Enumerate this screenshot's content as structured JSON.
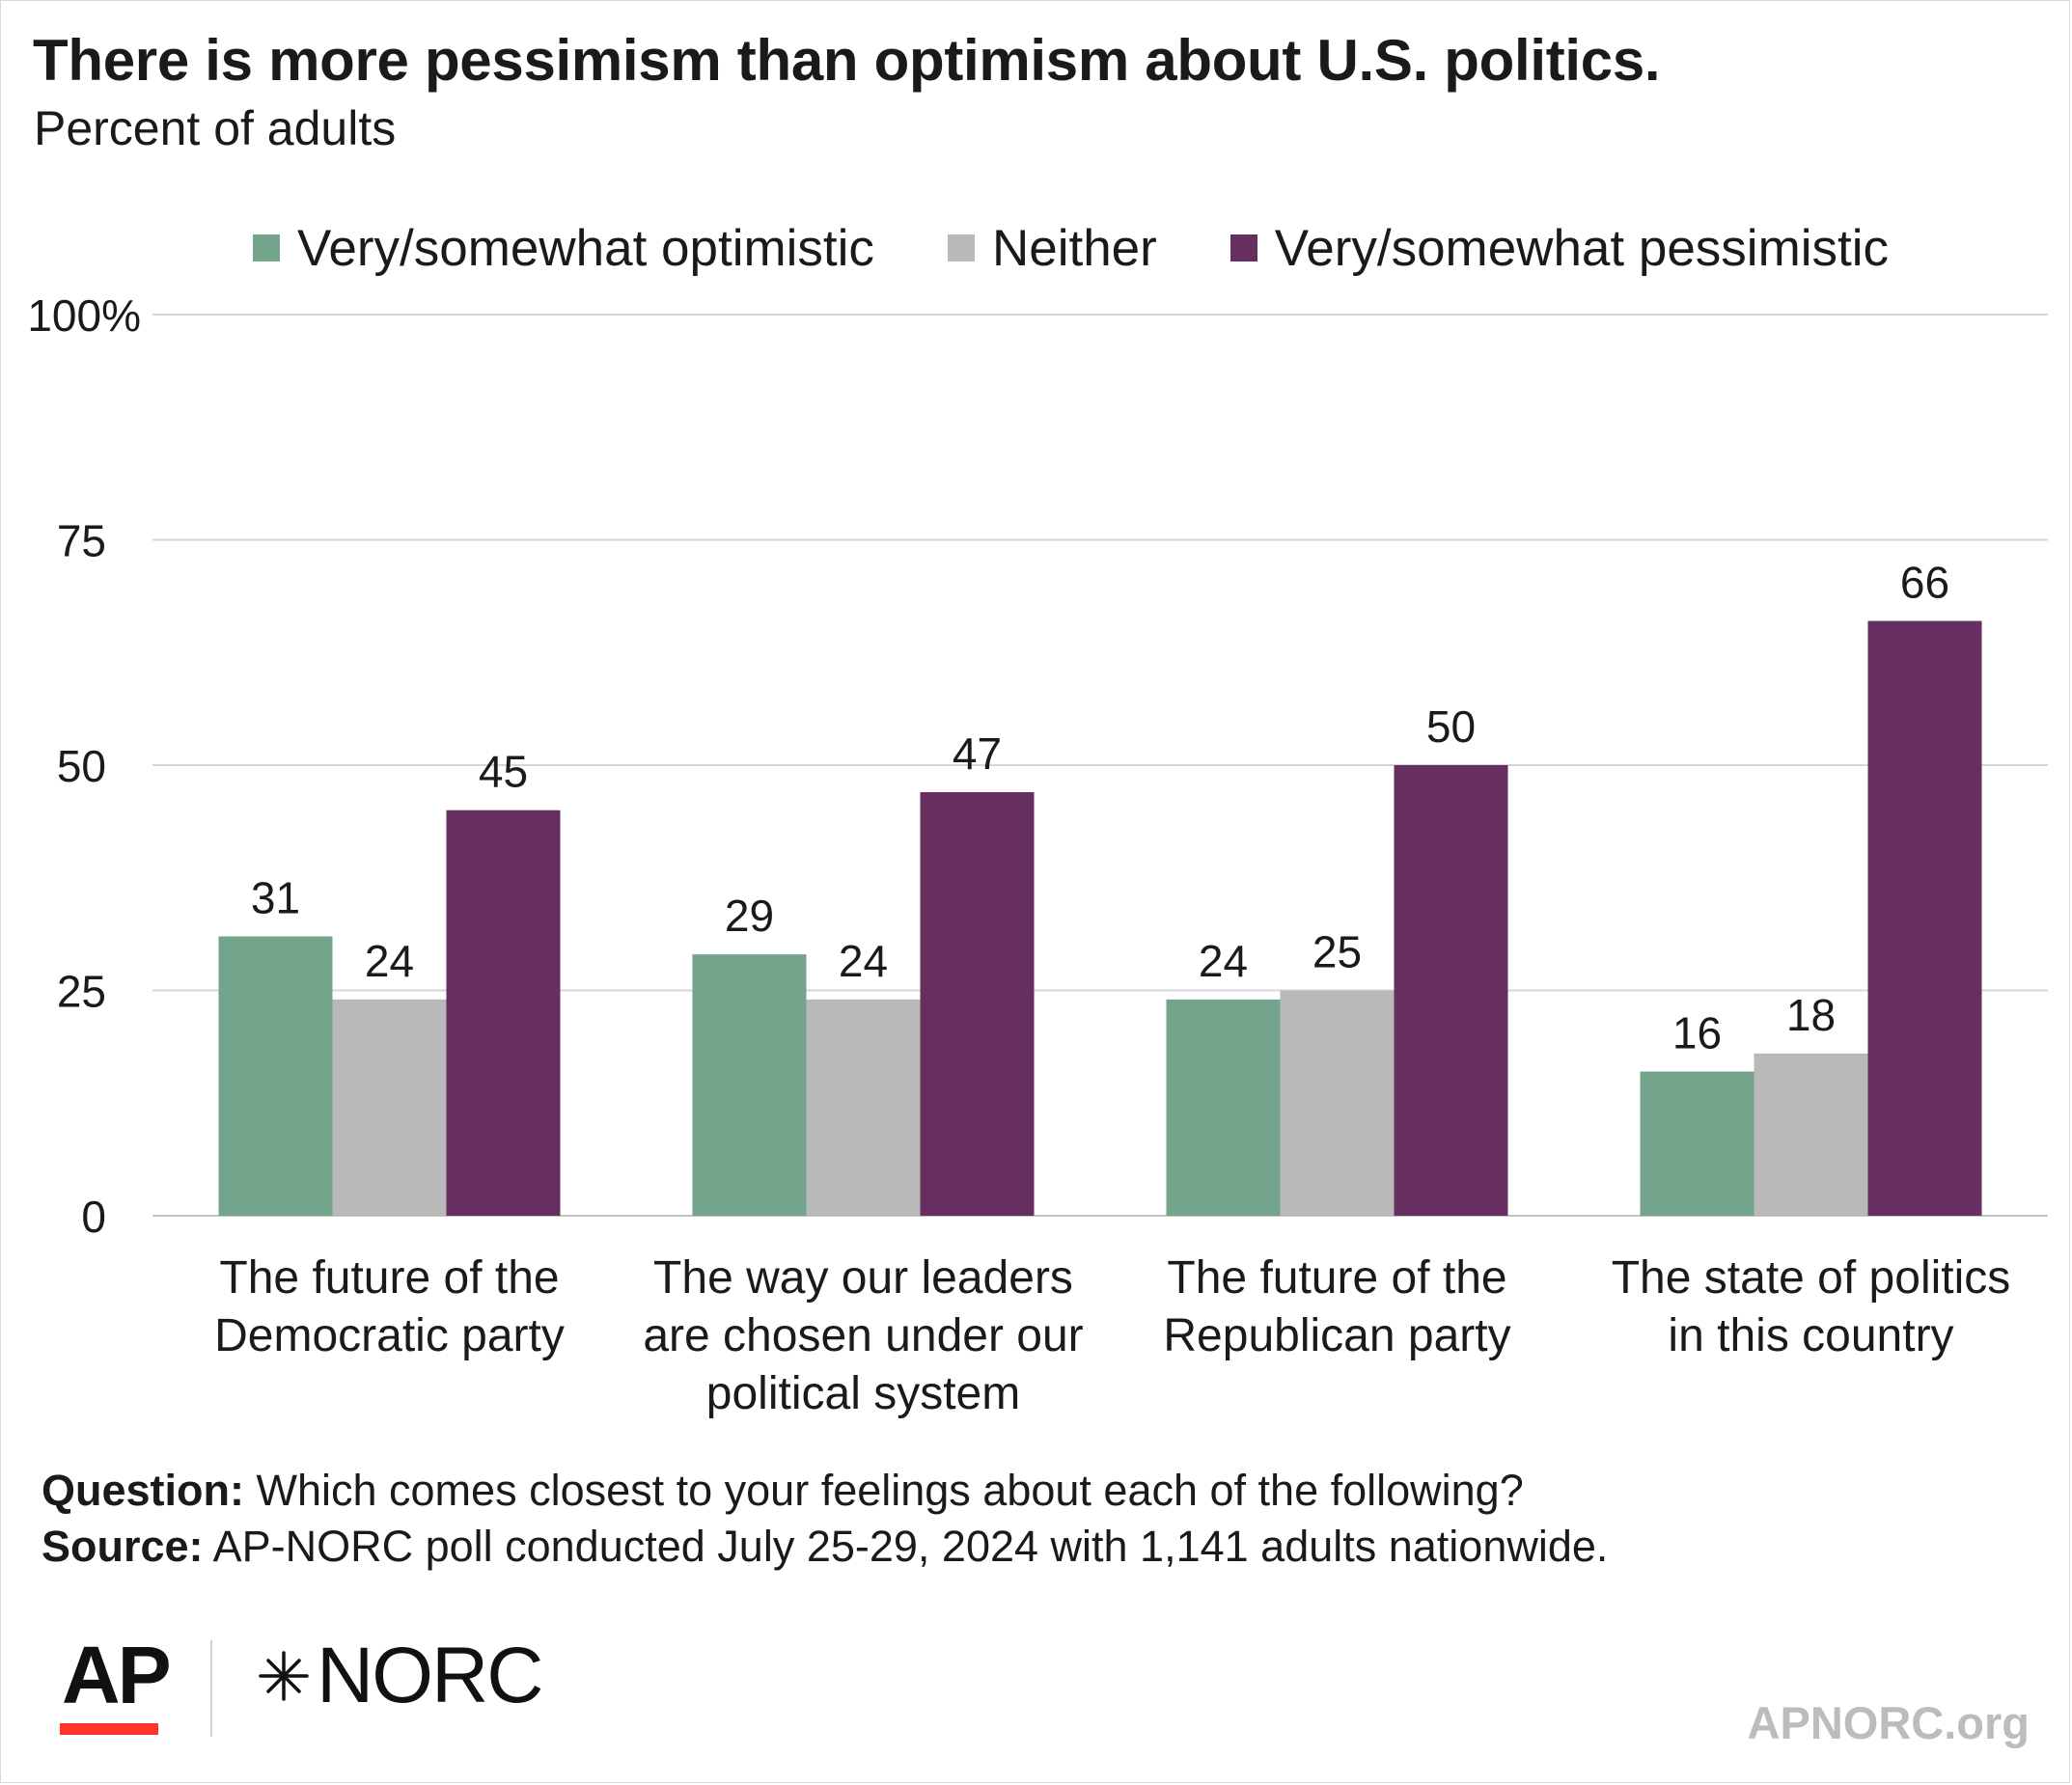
{
  "title": "There is more pessimism than optimism about U.S. politics.",
  "subtitle": "Percent of adults",
  "legend": [
    {
      "label": "Very/somewhat optimistic",
      "color": "#73a58c"
    },
    {
      "label": "Neither",
      "color": "#b9b9b9"
    },
    {
      "label": "Very/somewhat pessimistic",
      "color": "#662f60"
    }
  ],
  "chart_data": {
    "type": "bar",
    "categories": [
      [
        "The future of the",
        "Democratic party"
      ],
      [
        "The way our leaders",
        "are chosen under our",
        "political system"
      ],
      [
        "The future of the",
        "Republican party"
      ],
      [
        "The state of politics",
        "in this country"
      ]
    ],
    "series": [
      {
        "name": "Very/somewhat optimistic",
        "values": [
          31,
          29,
          24,
          16
        ],
        "color": "#73a58c"
      },
      {
        "name": "Neither",
        "values": [
          24,
          24,
          25,
          18
        ],
        "color": "#b9b9b9"
      },
      {
        "name": "Very/somewhat pessimistic",
        "values": [
          45,
          47,
          50,
          66
        ],
        "color": "#662f60"
      }
    ],
    "ylim": [
      0,
      100
    ],
    "yticks": [
      0,
      25,
      50,
      75,
      100
    ],
    "ytick_labels": [
      "0",
      "25",
      "50",
      "75",
      "100%"
    ],
    "xlabel": "",
    "ylabel": "",
    "grid": true,
    "legend_position": "top"
  },
  "footnotes": {
    "question_label": "Question:",
    "question_text": " Which comes closest to your feelings about each of the following?",
    "source_label": "Source:",
    "source_text": " AP-NORC poll conducted July 25-29, 2024 with 1,141 adults nationwide."
  },
  "logos": {
    "ap": "AP",
    "norc": "NORC",
    "site": "APNORC.org"
  }
}
